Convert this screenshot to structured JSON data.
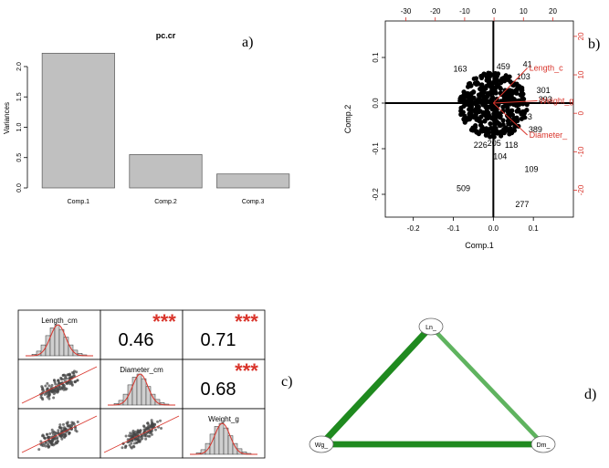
{
  "panel_tags": {
    "a": "a)",
    "b": "b)",
    "c": "c)",
    "d": "d)"
  },
  "chart_data": [
    {
      "panel": "a",
      "type": "bar",
      "title": "pc.cr",
      "ylabel": "Variances",
      "categories": [
        "Comp.1",
        "Comp.2",
        "Comp.3"
      ],
      "values": [
        2.22,
        0.55,
        0.23
      ],
      "ylim": [
        0,
        2.3
      ],
      "yticks": [
        0.0,
        0.5,
        1.0,
        1.5,
        2.0
      ],
      "ytick_labels": [
        "0.0",
        "0.5",
        "1.0",
        "1.5",
        "2.0"
      ],
      "bar_color": "#c0c0c0"
    },
    {
      "panel": "b",
      "type": "scatter",
      "subtype": "biplot",
      "xlabel": "Comp.1",
      "ylabel": "Comp.2",
      "xlim": [
        -0.27,
        0.2
      ],
      "ylim": [
        -0.25,
        0.18
      ],
      "xticks": [
        -0.2,
        -0.1,
        0.0,
        0.1
      ],
      "xtick_labels": [
        "-0.2",
        "-0.1",
        "0.0",
        "0.1"
      ],
      "yticks": [
        -0.2,
        -0.1,
        0.0,
        0.1
      ],
      "ytick_labels": [
        "-0.2",
        "-0.1",
        "0.0",
        "0.1"
      ],
      "top_ticks": [
        -30,
        -20,
        -10,
        0,
        10,
        20
      ],
      "top_tick_labels": [
        "-30",
        "-20",
        "-10",
        "0",
        "10",
        "20"
      ],
      "right_ticks": [
        -20,
        -10,
        0,
        10,
        20
      ],
      "right_tick_labels": [
        "-20",
        "-10",
        "0",
        "10",
        "20"
      ],
      "top_lim": [
        -37,
        27
      ],
      "right_lim": [
        -27,
        24
      ],
      "loadings": [
        {
          "label": "Length_c",
          "x": 0.085,
          "y": 0.077
        },
        {
          "label": "Weight_g",
          "x": 0.11,
          "y": 0.005
        },
        {
          "label": "Diameter_",
          "x": 0.085,
          "y": -0.07
        }
      ],
      "labeled_points": [
        {
          "label": "163",
          "x": -0.083,
          "y": 0.075
        },
        {
          "label": "41",
          "x": 0.085,
          "y": 0.085
        },
        {
          "label": "104",
          "x": 0.017,
          "y": -0.117
        },
        {
          "label": "109",
          "x": 0.095,
          "y": -0.145
        },
        {
          "label": "509",
          "x": -0.075,
          "y": -0.187
        },
        {
          "label": "277",
          "x": 0.072,
          "y": -0.222
        },
        {
          "label": "226",
          "x": -0.032,
          "y": -0.092
        },
        {
          "label": "118",
          "x": 0.045,
          "y": -0.092
        },
        {
          "label": "301",
          "x": 0.125,
          "y": 0.028
        },
        {
          "label": "389",
          "x": 0.105,
          "y": -0.058
        },
        {
          "label": "393",
          "x": 0.13,
          "y": 0.008
        },
        {
          "label": "253",
          "x": 0.08,
          "y": -0.03
        },
        {
          "label": "459",
          "x": 0.025,
          "y": 0.08
        },
        {
          "label": "205",
          "x": 0.002,
          "y": -0.088
        },
        {
          "label": "103",
          "x": 0.075,
          "y": 0.058
        }
      ]
    },
    {
      "panel": "c",
      "type": "scatter",
      "subtype": "correlation-matrix",
      "variables": [
        "Length_cm",
        "Diameter_cm",
        "Weight_g"
      ],
      "correlations": [
        {
          "pair": [
            "Length_cm",
            "Diameter_cm"
          ],
          "r": "0.46",
          "signif": "***"
        },
        {
          "pair": [
            "Length_cm",
            "Weight_g"
          ],
          "r": "0.71",
          "signif": "***"
        },
        {
          "pair": [
            "Diameter_cm",
            "Weight_g"
          ],
          "r": "0.68",
          "signif": "***"
        }
      ],
      "histogram_shape": [
        0.05,
        0.15,
        0.35,
        0.65,
        0.9,
        1.0,
        0.85,
        0.6,
        0.35,
        0.18,
        0.08,
        0.03
      ],
      "accent": "#d9342b"
    },
    {
      "panel": "d",
      "type": "diagram",
      "subtype": "network",
      "nodes": [
        {
          "id": "Ln_",
          "label": "Ln_"
        },
        {
          "id": "Wg_",
          "label": "Wg_"
        },
        {
          "id": "Dm_",
          "label": "Dm_"
        }
      ],
      "edges": [
        {
          "from": "Ln_",
          "to": "Wg_",
          "weight": 0.71,
          "color": "#1f8a1f"
        },
        {
          "from": "Wg_",
          "to": "Dm_",
          "weight": 0.68,
          "color": "#1f8a1f"
        },
        {
          "from": "Ln_",
          "to": "Dm_",
          "weight": 0.46,
          "color": "#5fb35f"
        }
      ]
    }
  ]
}
